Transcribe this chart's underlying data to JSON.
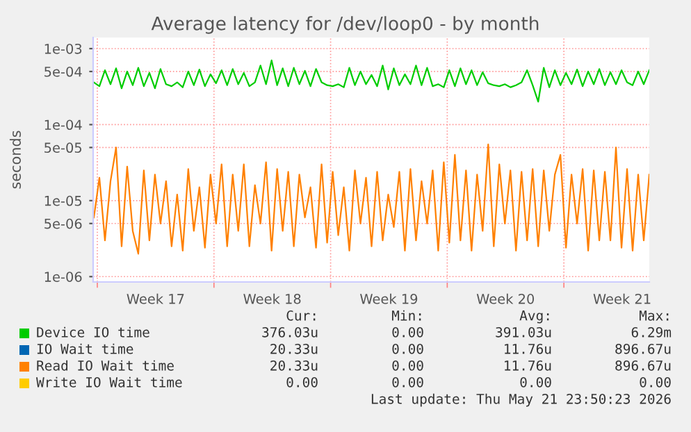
{
  "chart_data": {
    "type": "line",
    "title": "Average latency for /dev/loop0 - by month",
    "ylabel": "seconds",
    "x": [
      "2026-04-19T19:00",
      "2026-04-20T03:00",
      "2026-04-20T11:00",
      "2026-04-20T19:00",
      "2026-04-21T03:00",
      "2026-04-21T11:00",
      "2026-04-21T19:00",
      "2026-04-22T03:00",
      "2026-04-22T11:00",
      "2026-04-22T19:00",
      "2026-04-23T03:00",
      "2026-04-23T11:00",
      "2026-04-23T19:00",
      "2026-04-24T03:00",
      "2026-04-24T11:00",
      "2026-04-24T19:00",
      "2026-04-25T03:00",
      "2026-04-25T11:00",
      "2026-04-25T19:00",
      "2026-04-26T03:00",
      "2026-04-26T11:00",
      "2026-04-26T19:00",
      "2026-04-27T03:00",
      "2026-04-27T11:00",
      "2026-04-27T19:00",
      "2026-04-28T03:00",
      "2026-04-28T11:00",
      "2026-04-28T19:00",
      "2026-04-29T03:00",
      "2026-04-29T11:00",
      "2026-04-29T19:00",
      "2026-04-30T03:00",
      "2026-04-30T11:00",
      "2026-04-30T19:00",
      "2026-05-01T03:00",
      "2026-05-01T11:00",
      "2026-05-01T19:00",
      "2026-05-02T03:00",
      "2026-05-02T11:00",
      "2026-05-02T19:00",
      "2026-05-03T03:00",
      "2026-05-03T11:00",
      "2026-05-03T19:00",
      "2026-05-04T03:00",
      "2026-05-04T11:00",
      "2026-05-04T19:00",
      "2026-05-05T03:00",
      "2026-05-05T11:00",
      "2026-05-05T19:00",
      "2026-05-06T03:00",
      "2026-05-06T11:00",
      "2026-05-06T19:00",
      "2026-05-07T03:00",
      "2026-05-07T11:00",
      "2026-05-07T19:00",
      "2026-05-08T03:00",
      "2026-05-08T11:00",
      "2026-05-08T19:00",
      "2026-05-09T03:00",
      "2026-05-09T11:00",
      "2026-05-09T19:00",
      "2026-05-10T03:00",
      "2026-05-10T11:00",
      "2026-05-10T19:00",
      "2026-05-11T03:00",
      "2026-05-11T11:00",
      "2026-05-11T19:00",
      "2026-05-12T03:00",
      "2026-05-12T11:00",
      "2026-05-12T19:00",
      "2026-05-13T03:00",
      "2026-05-13T11:00",
      "2026-05-13T19:00",
      "2026-05-14T03:00",
      "2026-05-14T11:00",
      "2026-05-14T19:00",
      "2026-05-15T03:00",
      "2026-05-15T11:00",
      "2026-05-15T19:00",
      "2026-05-16T03:00",
      "2026-05-16T11:00",
      "2026-05-16T19:00",
      "2026-05-17T03:00",
      "2026-05-17T11:00",
      "2026-05-17T19:00",
      "2026-05-18T03:00",
      "2026-05-18T11:00",
      "2026-05-18T19:00",
      "2026-05-19T03:00",
      "2026-05-19T11:00",
      "2026-05-19T19:00",
      "2026-05-20T03:00",
      "2026-05-20T11:00",
      "2026-05-20T19:00",
      "2026-05-21T03:00",
      "2026-05-21T11:00",
      "2026-05-21T19:00",
      "2026-05-22T03:00",
      "2026-05-22T11:00",
      "2026-05-22T19:00",
      "2026-05-23T03:00"
    ],
    "series": [
      {
        "name": "Device IO time",
        "color": "#00cc00",
        "values": [
          0.00036,
          0.00032,
          0.00052,
          0.00034,
          0.00055,
          0.0003,
          0.0005,
          0.00033,
          0.00056,
          0.00032,
          0.00048,
          0.0003,
          0.00054,
          0.00034,
          0.00032,
          0.00036,
          0.00031,
          0.0005,
          0.00033,
          0.00053,
          0.00032,
          0.00046,
          0.00035,
          0.00052,
          0.00033,
          0.00054,
          0.00034,
          0.00048,
          0.00032,
          0.00036,
          0.0006,
          0.00034,
          0.0007,
          0.00033,
          0.00055,
          0.00032,
          0.00056,
          0.00034,
          0.00051,
          0.00032,
          0.00054,
          0.00036,
          0.00033,
          0.00032,
          0.00034,
          0.00031,
          0.00056,
          0.00033,
          0.0005,
          0.00034,
          0.00045,
          0.00032,
          0.0006,
          0.00029,
          0.00055,
          0.00033,
          0.00046,
          0.00034,
          0.0006,
          0.00033,
          0.00056,
          0.00032,
          0.00034,
          0.00031,
          0.00052,
          0.00032,
          0.00055,
          0.00034,
          0.00052,
          0.00033,
          0.00049,
          0.00035,
          0.00033,
          0.00032,
          0.00034,
          0.00031,
          0.00033,
          0.00036,
          0.00052,
          0.00033,
          0.0002,
          0.00056,
          0.00031,
          0.00052,
          0.00033,
          0.00048,
          0.00034,
          0.00053,
          0.00032,
          0.0005,
          0.00034,
          0.00054,
          0.00033,
          0.00049,
          0.00034,
          0.00052,
          0.00036,
          0.00033,
          0.0005,
          0.00034,
          0.00052
        ]
      },
      {
        "name": "IO Wait time",
        "color": "#0066b3",
        "values": [
          null,
          null,
          null,
          null,
          null,
          null,
          null,
          null,
          null,
          null,
          null,
          null,
          null,
          null,
          null,
          null,
          null,
          null,
          null,
          null,
          null,
          null,
          null,
          null,
          null,
          null,
          null,
          null,
          null,
          null,
          null,
          null,
          null,
          null,
          null,
          null,
          null,
          null,
          null,
          null,
          null,
          null,
          null,
          null,
          null,
          null,
          null,
          null,
          null,
          null,
          null,
          null,
          null,
          null,
          null,
          null,
          null,
          null,
          null,
          null,
          null,
          null,
          null,
          null,
          null,
          null,
          null,
          null,
          null,
          null,
          null,
          null,
          null,
          null,
          null,
          null,
          null,
          null,
          null,
          null,
          null,
          null,
          null,
          null,
          null,
          null,
          null,
          null,
          null,
          null,
          null,
          null,
          null,
          null,
          null,
          null,
          null,
          null,
          null,
          null,
          null
        ]
      },
      {
        "name": "Read IO Wait time",
        "color": "#ff8000",
        "values": [
          6e-06,
          2e-05,
          3e-06,
          1.8e-05,
          5e-05,
          2.5e-06,
          2.8e-05,
          4e-06,
          2e-06,
          2.5e-05,
          3e-06,
          2.2e-05,
          5e-06,
          1.8e-05,
          2.5e-06,
          1.2e-05,
          2.2e-06,
          2.6e-05,
          4e-06,
          1.5e-05,
          2.4e-06,
          2.2e-05,
          5e-06,
          3e-05,
          2.5e-06,
          2.2e-05,
          4e-06,
          3e-05,
          2.5e-06,
          1.6e-05,
          5e-06,
          3.2e-05,
          2.2e-06,
          2.6e-05,
          4e-06,
          2.4e-05,
          2.5e-06,
          2.2e-05,
          6e-06,
          1.5e-05,
          2.4e-06,
          3e-05,
          2.8e-06,
          2.4e-05,
          3.5e-06,
          1.5e-05,
          2.2e-06,
          2.5e-05,
          5e-06,
          2e-05,
          2.5e-06,
          2.4e-05,
          3e-06,
          1.2e-05,
          4.5e-06,
          2.4e-05,
          2.2e-06,
          2.6e-05,
          3e-06,
          1.8e-05,
          5e-06,
          2.5e-05,
          2.2e-06,
          3.2e-05,
          2.8e-06,
          4e-05,
          3e-06,
          2.5e-05,
          2.2e-06,
          2.2e-05,
          4e-06,
          5.5e-05,
          2.5e-06,
          3e-05,
          5e-06,
          2.5e-05,
          2.2e-06,
          2.4e-05,
          3e-06,
          2.6e-05,
          2.5e-06,
          2.5e-05,
          4e-06,
          2.2e-05,
          4e-05,
          2.4e-06,
          2.2e-05,
          5e-06,
          2.6e-05,
          2.2e-06,
          2.5e-05,
          3e-06,
          2.4e-05,
          3e-06,
          5e-05,
          2.4e-06,
          2.6e-05,
          2.2e-06,
          2.2e-05,
          3e-06,
          2.2e-05
        ]
      },
      {
        "name": "Write IO Wait time",
        "color": "#ffcc00",
        "values": [
          null,
          null,
          null,
          null,
          null,
          null,
          null,
          null,
          null,
          null,
          null,
          null,
          null,
          null,
          null,
          null,
          null,
          null,
          null,
          null,
          null,
          null,
          null,
          null,
          null,
          null,
          null,
          null,
          null,
          null,
          null,
          null,
          null,
          null,
          null,
          null,
          null,
          null,
          null,
          null,
          null,
          null,
          null,
          null,
          null,
          null,
          null,
          null,
          null,
          null,
          null,
          null,
          null,
          null,
          null,
          null,
          null,
          null,
          null,
          null,
          null,
          null,
          null,
          null,
          null,
          null,
          null,
          null,
          null,
          null,
          null,
          null,
          null,
          null,
          null,
          null,
          null,
          null,
          null,
          null,
          null,
          null,
          null,
          null,
          null,
          null,
          null,
          null,
          null,
          null,
          null,
          null,
          null,
          null,
          null,
          null,
          null,
          null,
          null,
          null,
          null
        ]
      }
    ],
    "log": true,
    "xlim": [
      "2026-04-19T18:00",
      "2026-05-23T03:00"
    ],
    "xticks": [
      {
        "value": "2026-04-20",
        "label": null
      },
      {
        "value": "2026-04-23T12:00",
        "label": "Week 17"
      },
      {
        "value": "2026-04-27",
        "label": null
      },
      {
        "value": "2026-04-30T12:00",
        "label": "Week 18"
      },
      {
        "value": "2026-05-04",
        "label": null
      },
      {
        "value": "2026-05-07T12:00",
        "label": "Week 19"
      },
      {
        "value": "2026-05-11",
        "label": null
      },
      {
        "value": "2026-05-14T12:00",
        "label": "Week 20"
      },
      {
        "value": "2026-05-18",
        "label": null
      },
      {
        "value": "2026-05-21T12:00",
        "label": "Week 21"
      }
    ],
    "ylim": [
      8.5e-07,
      0.0014
    ],
    "yticks": [
      {
        "value": 1e-06,
        "label": "1e-06"
      },
      {
        "value": 5e-06,
        "label": "5e-06"
      },
      {
        "value": 1e-05,
        "label": "1e-05"
      },
      {
        "value": 5e-05,
        "label": "5e-05"
      },
      {
        "value": 0.0001,
        "label": "1e-04"
      },
      {
        "value": 0.0005,
        "label": "5e-04"
      },
      {
        "value": 0.001,
        "label": "1e-03"
      }
    ],
    "grid": true,
    "legend": "bottom",
    "annotations": [
      "Cur:",
      "Min:",
      "Avg:",
      "Max:",
      "376.03u",
      "0.00",
      "391.03u",
      "6.29m",
      "20.33u",
      "0.00",
      "11.76u",
      "896.67u",
      "20.33u",
      "0.00",
      "11.76u",
      "896.67u",
      "0.00",
      "0.00",
      "0.00",
      "0.00",
      "Last update: Thu May 21 23:50:23 2026"
    ]
  }
}
